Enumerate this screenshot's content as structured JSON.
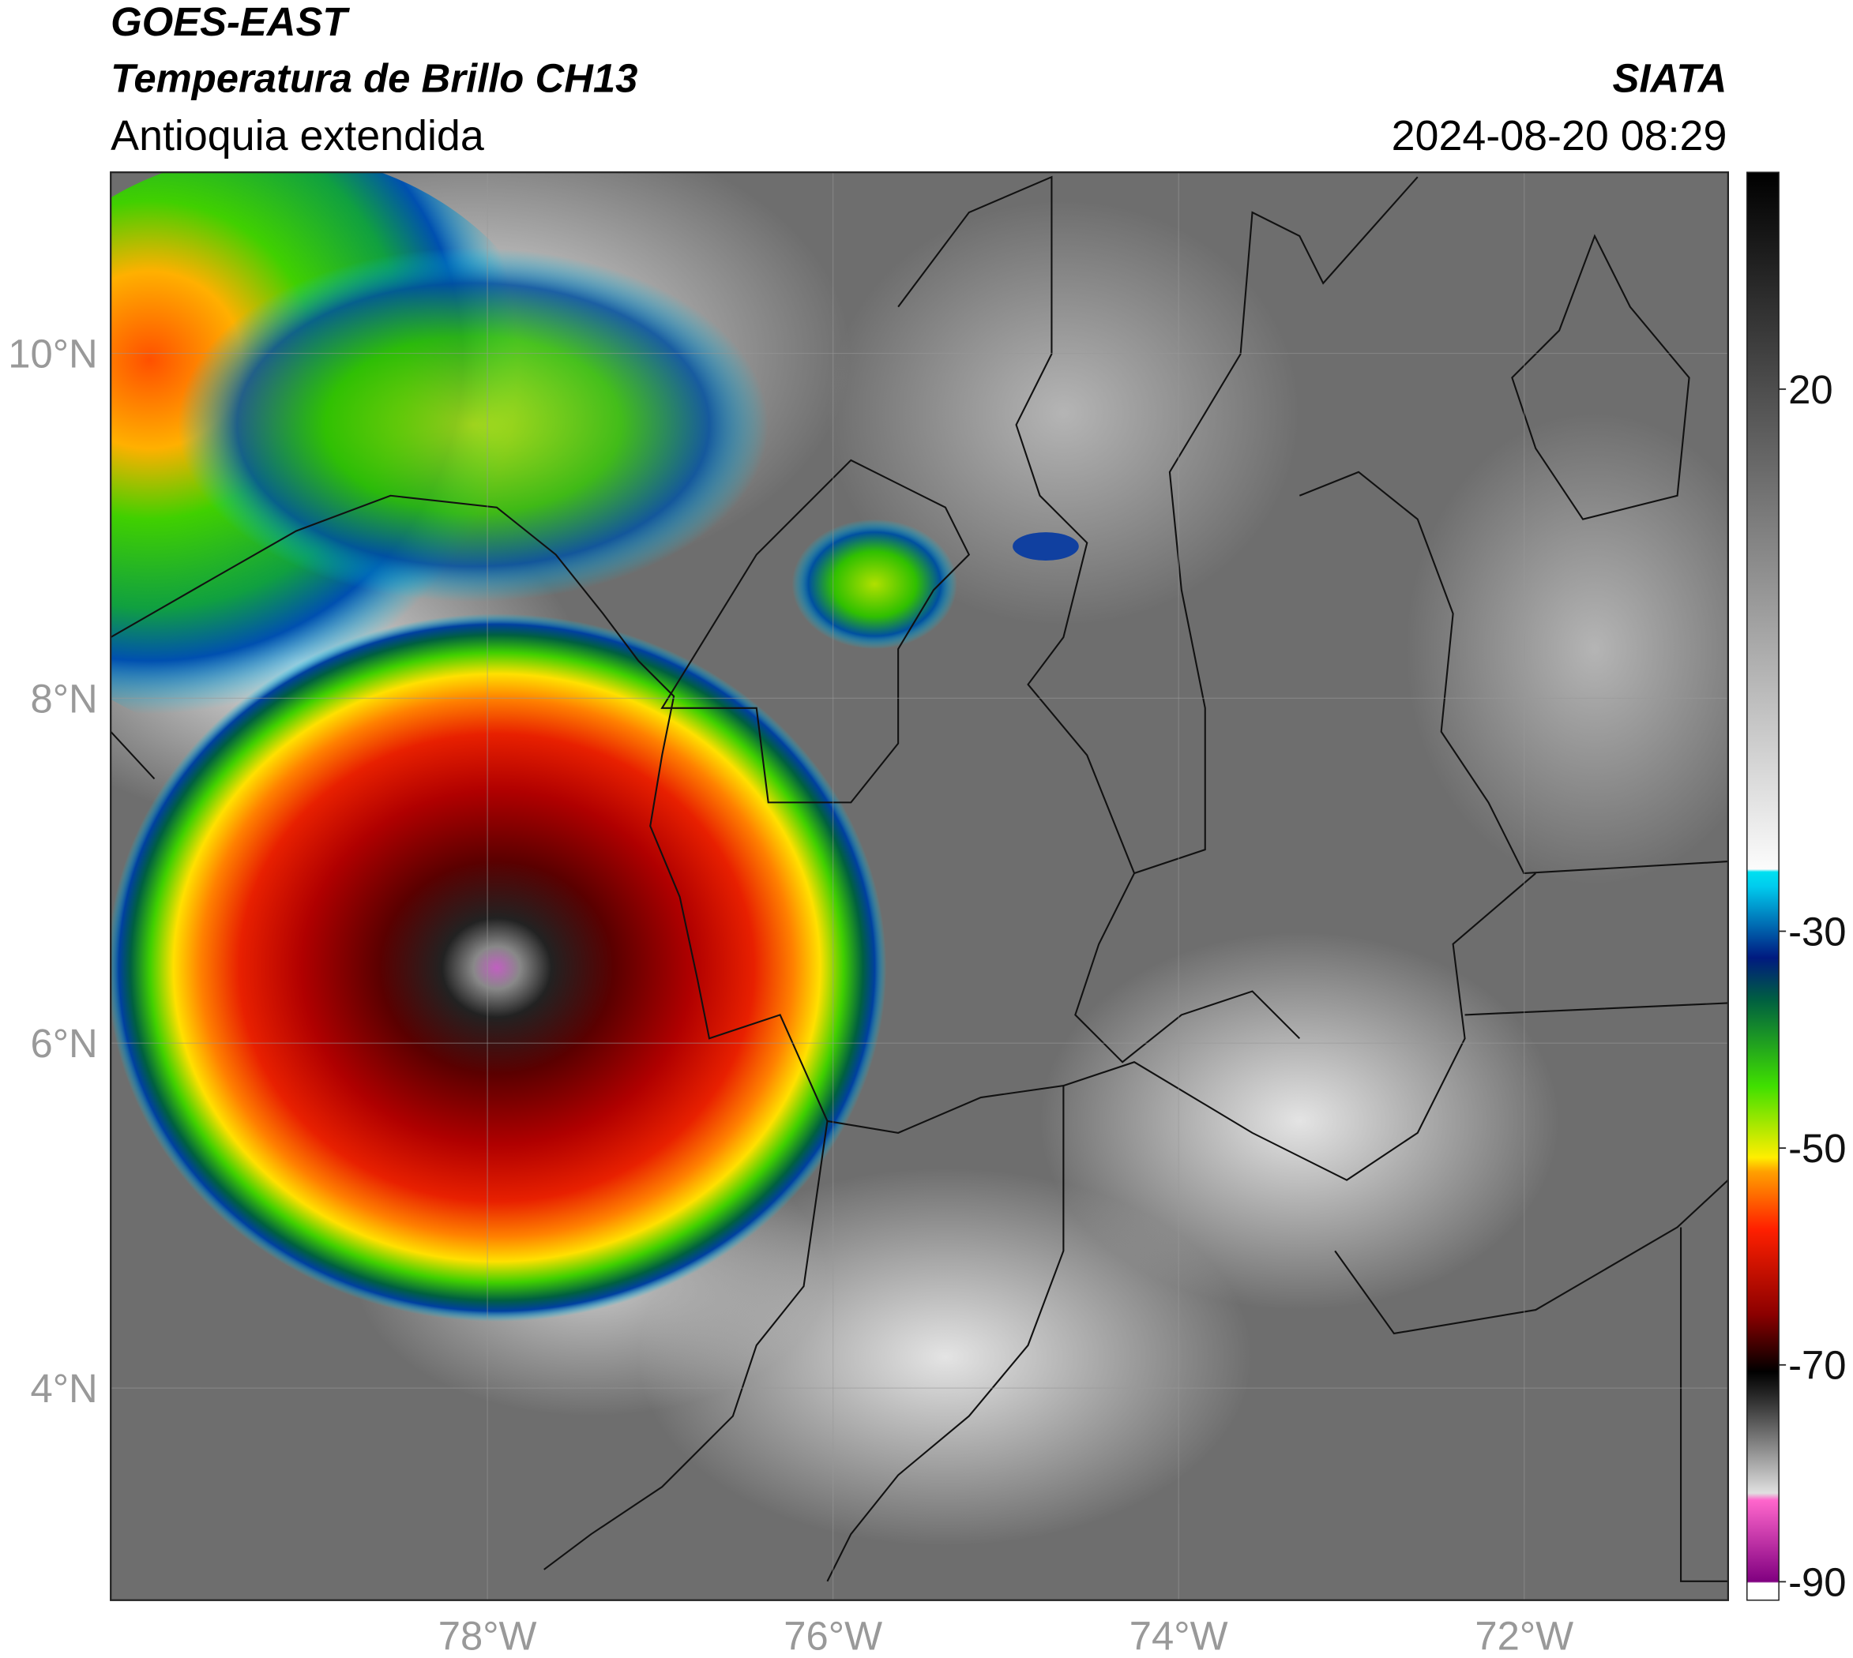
{
  "header": {
    "source": "GOES-EAST",
    "product": "Temperatura de Brillo CH13",
    "region": "Antioquia extendida",
    "agency": "SIATA",
    "timestamp": "2024-08-20 08:29"
  },
  "map": {
    "xlim": [
      -80.18,
      -70.82
    ],
    "ylim": [
      2.77,
      11.05
    ],
    "xticks": [
      {
        "value": -78,
        "label": "78°W"
      },
      {
        "value": -76,
        "label": "76°W"
      },
      {
        "value": -74,
        "label": "74°W"
      },
      {
        "value": -72,
        "label": "72°W"
      }
    ],
    "yticks": [
      {
        "value": 4,
        "label": "4°N"
      },
      {
        "value": 6,
        "label": "6°N"
      },
      {
        "value": 8,
        "label": "8°N"
      },
      {
        "value": 10,
        "label": "10°N"
      }
    ],
    "grid": true
  },
  "colorbar": {
    "lim": [
      -91.7,
      40
    ],
    "ticks": [
      20,
      -30,
      -50,
      -70,
      -90
    ]
  }
}
